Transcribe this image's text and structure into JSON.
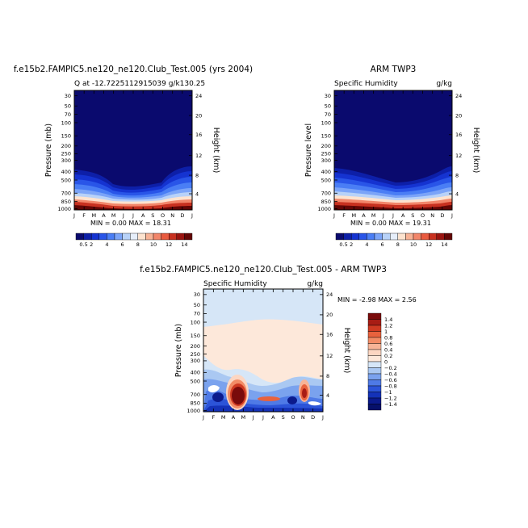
{
  "chart_data": [
    {
      "type": "heatmap",
      "title": "f.e15b2.FAMPIC5.ne120_ne120.Club_Test.005 (yrs 2004)",
      "subtitle_left": "Q at -12.7225112915039 g/k130.25",
      "ylabel": "Pressure (mb)",
      "ylabel_right": "Height (km)",
      "x_ticks": [
        "J",
        "F",
        "M",
        "A",
        "M",
        "J",
        "J",
        "A",
        "S",
        "O",
        "N",
        "D",
        "J"
      ],
      "y_ticks": [
        "30",
        "50",
        "70",
        "100",
        "150",
        "200",
        "250",
        "300",
        "400",
        "500",
        "700",
        "850",
        "1000"
      ],
      "y_ticks_right": [
        "24",
        "20",
        "16",
        "12",
        "8",
        "4"
      ],
      "min_max": "MIN =    0.00  MAX =   18.31",
      "colorbar_labels": [
        "0.5",
        "2",
        "4",
        "6",
        "8",
        "10",
        "12",
        "14"
      ],
      "colorbar_colors": [
        "#0a0a6e",
        "#0d1fa8",
        "#1533d1",
        "#2955e8",
        "#4a7ef5",
        "#7ba4f8",
        "#b8d2f8",
        "#e6eefa",
        "#fde3cf",
        "#f7b295",
        "#f2866a",
        "#e85a3f",
        "#c83120",
        "#9a1410",
        "#640605"
      ],
      "min": 0.0,
      "max": 18.31,
      "units": "g/kg"
    },
    {
      "type": "heatmap",
      "title": "ARM TWP3",
      "subtitle_left": "Specific Humidity",
      "subtitle_right": "g/kg",
      "ylabel": "Pressure level",
      "ylabel_right": "Height (km)",
      "x_ticks": [
        "J",
        "F",
        "M",
        "A",
        "M",
        "J",
        "J",
        "A",
        "S",
        "O",
        "N",
        "D",
        "J"
      ],
      "y_ticks": [
        "30",
        "50",
        "70",
        "100",
        "150",
        "200",
        "250",
        "300",
        "400",
        "500",
        "700",
        "850",
        "1000"
      ],
      "y_ticks_right": [
        "24",
        "20",
        "16",
        "12",
        "8",
        "4"
      ],
      "min_max": "MIN =    0.00  MAX =   19.31",
      "colorbar_labels": [
        "0.5",
        "2",
        "4",
        "6",
        "8",
        "10",
        "12",
        "14"
      ],
      "min": 0.0,
      "max": 19.31,
      "units": "g/kg"
    },
    {
      "type": "heatmap",
      "title": "f.e15b2.FAMPIC5.ne120_ne120.Club_Test.005 - ARM TWP3",
      "subtitle_left": "Specific Humidity",
      "subtitle_right": "g/kg",
      "ylabel": "Pressure (mb)",
      "ylabel_right": "Height (km)",
      "x_ticks": [
        "J",
        "F",
        "M",
        "A",
        "M",
        "J",
        "J",
        "A",
        "S",
        "O",
        "N",
        "D",
        "J"
      ],
      "y_ticks": [
        "30",
        "50",
        "70",
        "100",
        "150",
        "200",
        "250",
        "300",
        "400",
        "500",
        "700",
        "850",
        "1000"
      ],
      "y_ticks_right": [
        "24",
        "20",
        "16",
        "12",
        "8",
        "4"
      ],
      "min_max": "MIN =   -2.98  MAX =    2.56",
      "colorbar_labels": [
        "1.4",
        "1.2",
        "1",
        "0.8",
        "0.6",
        "0.4",
        "0.2",
        "0",
        "−0.2",
        "−0.4",
        "−0.6",
        "−0.8",
        "−1",
        "−1.2",
        "−1.4"
      ],
      "colorbar_colors": [
        "#7a0b0b",
        "#a81c14",
        "#cf3a22",
        "#e8623d",
        "#f28c66",
        "#f7b497",
        "#fcd6c2",
        "#fde8da",
        "#d6e6f7",
        "#aac8f2",
        "#7aa2ee",
        "#4f7ae6",
        "#2c54d8",
        "#1432b8",
        "#0b1a8c",
        "#06106a"
      ],
      "min": -2.98,
      "max": 2.56,
      "units": "g/kg"
    }
  ]
}
